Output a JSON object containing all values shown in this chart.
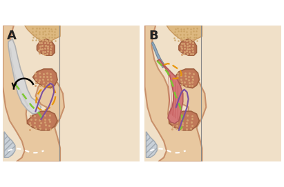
{
  "figure_label_A": "A",
  "figure_label_B": "B",
  "label_fontsize": 13,
  "label_fontweight": "bold",
  "label_color": "#222222",
  "bg_color": "#ffffff",
  "fig_width": 4.11,
  "fig_height": 2.71,
  "dpi": 100,
  "panel_A": {
    "skin_fill": "#e8c8a0",
    "skin_edge": "#c8906a",
    "cartilage_fill": "#d8d8d8",
    "cartilage_edge": "#b0b0b0",
    "turb_fill": "#b87050",
    "turb_edge": "#a06040",
    "turb_dot": "#d4a070",
    "bone_fill": "#ddb880",
    "bone_edge": "#c89860",
    "bone_dot": "#c8a060",
    "hatch_fill": "#c8d0d8",
    "hatch_edge": "#a0a8b0",
    "green_dashed_color": "#7dc832",
    "green_dashed_lw": 1.8,
    "orange_dashed_color": "#e8960a",
    "orange_dashed_lw": 1.6,
    "purple_line_color": "#7b4fa0",
    "purple_line_lw": 1.5,
    "white_dashed_lw": 1.5
  },
  "panel_B": {
    "skin_fill": "#e8c8a0",
    "skin_edge": "#c8906a",
    "flap_fill": "#d47878",
    "flap_edge": "#b05858",
    "flap_vein": "#c05050",
    "blue_fill": "#90a8c0",
    "blue_edge": "#708898",
    "turb_fill": "#b87050",
    "turb_edge": "#a06040",
    "turb_dot": "#d4a070",
    "bone_fill": "#ddb880",
    "bone_edge": "#c89860",
    "bone_dot": "#c8a060",
    "hatch_fill": "#c8d0d8",
    "hatch_edge": "#a0a8b0",
    "green_dashed_color": "#7dc832",
    "green_dashed_lw": 1.8,
    "orange_dashed_color": "#e8960a",
    "orange_dashed_lw": 1.6,
    "purple_line_color": "#7b4fa0",
    "purple_line_lw": 1.5,
    "white_dashed_lw": 1.5
  }
}
